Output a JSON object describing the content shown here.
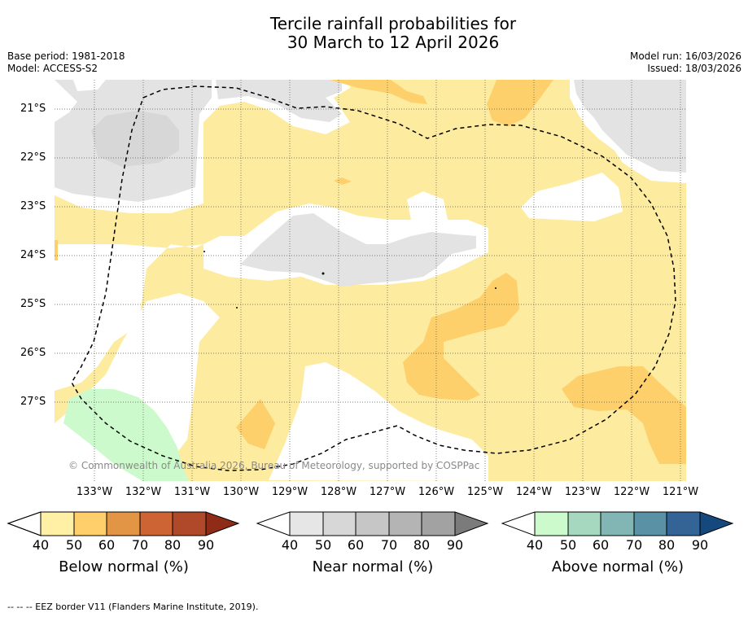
{
  "title_line1": "Tercile rainfall probabilities for",
  "title_line2": "30 March to 12 April 2026",
  "base_period": "Base period: 1981-2018",
  "model": "Model: ACCESS-S2",
  "model_run": "Model run: 16/03/2026",
  "issued": "Issued: 18/03/2026",
  "copyright": "© Commonwealth of Australia 2026, Bureau of Meteorology, supported by COSPPac",
  "footer": "--  --  -- EEZ border V11 (Flanders Marine Institute, 2019).",
  "latitudes": [
    "21°S",
    "22°S",
    "23°S",
    "24°S",
    "25°S",
    "26°S",
    "27°S"
  ],
  "longitudes": [
    "133°W",
    "132°W",
    "131°W",
    "130°W",
    "129°W",
    "128°W",
    "127°W",
    "126°W",
    "125°W",
    "124°W",
    "123°W",
    "122°W",
    "121°W"
  ],
  "colorbars": [
    {
      "title": "Below normal (%)",
      "ticks": [
        "40",
        "50",
        "60",
        "70",
        "80",
        "90"
      ],
      "colors": [
        "#fff0a6",
        "#fecf6a",
        "#e19545",
        "#cd6433",
        "#b0492a",
        "#8e2c17"
      ]
    },
    {
      "title": "Near normal (%)",
      "ticks": [
        "40",
        "50",
        "60",
        "70",
        "80",
        "90"
      ],
      "colors": [
        "#e6e6e6",
        "#d7d7d7",
        "#c6c6c6",
        "#b4b4b4",
        "#a2a2a2",
        "#7b7b7b"
      ]
    },
    {
      "title": "Above normal (%)",
      "ticks": [
        "40",
        "50",
        "60",
        "70",
        "80",
        "90"
      ],
      "colors": [
        "#ccfacc",
        "#a6d8bf",
        "#82b6b5",
        "#5a91a5",
        "#346395",
        "#15497e"
      ]
    }
  ],
  "map_colors": {
    "below_40_50": "#fdeb9f",
    "below_50_60": "#fdd06b",
    "near_40_50": "#e3e3e3",
    "near_50_60": "#d7d7d7",
    "above_40_50": "#ccfacc",
    "no_signal": "#ffffff"
  }
}
